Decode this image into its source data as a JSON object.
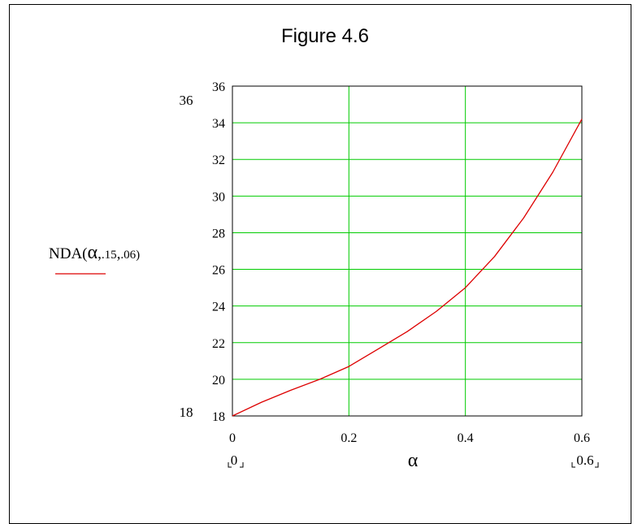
{
  "chart_data": {
    "type": "line",
    "title": "Figure 4.6",
    "ylabel": {
      "prefix": "NDA(",
      "alpha": "α",
      "comma": ",",
      "a": ".15",
      "comma2": ",",
      "b": ".06)"
    },
    "xlabel": "α",
    "xlim": [
      0,
      0.6
    ],
    "ylim": [
      18,
      36
    ],
    "xlim_labels": [
      "0",
      "0.6"
    ],
    "ylim_labels": [
      "18",
      "36"
    ],
    "x_ticks": [
      0,
      0.2,
      0.4,
      0.6
    ],
    "x_tick_labels": [
      "0",
      "0.2",
      "0.4",
      "0.6"
    ],
    "y_ticks": [
      18,
      20,
      22,
      24,
      26,
      28,
      30,
      32,
      34,
      36
    ],
    "y_tick_labels": [
      "18",
      "20",
      "22",
      "24",
      "26",
      "28",
      "30",
      "32",
      "34",
      "36"
    ],
    "grid": true,
    "grid_color": "#00cc00",
    "series": [
      {
        "color": "#dd0000",
        "x": [
          0,
          0.05,
          0.1,
          0.15,
          0.2,
          0.25,
          0.3,
          0.35,
          0.4,
          0.45,
          0.5,
          0.55,
          0.6
        ],
        "y": [
          18.0,
          18.75,
          19.4,
          20.0,
          20.7,
          21.65,
          22.6,
          23.7,
          25.0,
          26.7,
          28.8,
          31.3,
          34.2
        ]
      }
    ]
  }
}
